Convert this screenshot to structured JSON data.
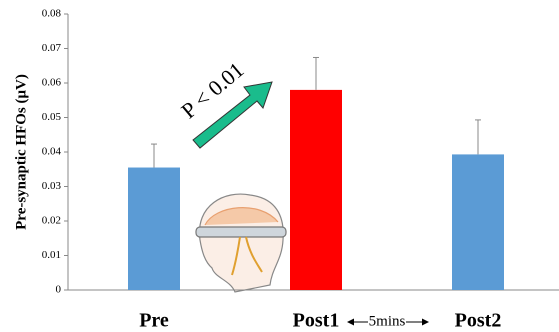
{
  "chart_data": {
    "type": "bar",
    "y_label": "Pre-synaptic HFOs (μV)",
    "categories": [
      "Pre",
      "Post1",
      "Post2"
    ],
    "values": [
      0.0355,
      0.058,
      0.0393
    ],
    "errors": [
      0.0068,
      0.0094,
      0.01
    ],
    "colors": [
      "#5b9bd5",
      "#ff0000",
      "#5b9bd5"
    ],
    "ylim": [
      0,
      0.08
    ],
    "yticks": [
      0,
      0.01,
      0.02,
      0.03,
      0.04,
      0.05,
      0.06,
      0.07,
      0.08
    ],
    "annotations": [
      "P < 0.01",
      "5mins"
    ]
  }
}
